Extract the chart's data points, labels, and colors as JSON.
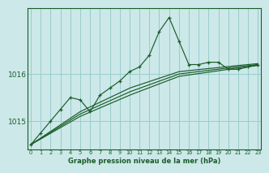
{
  "title": "Graphe pression niveau de la mer (hPa)",
  "bg_color": "#cce8e8",
  "grid_color": "#99cccc",
  "line_color": "#1a5c2a",
  "yticks": [
    1015,
    1016
  ],
  "ylim": [
    1014.4,
    1017.4
  ],
  "xlim": [
    -0.3,
    23.3
  ],
  "xticks": [
    0,
    1,
    2,
    3,
    4,
    5,
    6,
    7,
    8,
    9,
    10,
    11,
    12,
    13,
    14,
    15,
    16,
    17,
    18,
    19,
    20,
    21,
    22,
    23
  ],
  "main_x": [
    0,
    1,
    2,
    3,
    4,
    5,
    6,
    7,
    8,
    9,
    10,
    11,
    12,
    13,
    14,
    15,
    16,
    17,
    18,
    19,
    20,
    21,
    22,
    23
  ],
  "main_y": [
    1014.5,
    1014.75,
    1015.0,
    1015.25,
    1015.5,
    1015.45,
    1015.2,
    1015.55,
    1015.7,
    1015.85,
    1016.05,
    1016.15,
    1016.4,
    1016.9,
    1017.2,
    1016.7,
    1016.2,
    1016.2,
    1016.25,
    1016.25,
    1016.1,
    1016.1,
    1016.15,
    1016.2
  ],
  "trend_lines": [
    {
      "x": [
        0,
        5,
        10,
        15,
        20,
        23
      ],
      "y": [
        1014.5,
        1015.1,
        1015.55,
        1015.95,
        1016.1,
        1016.18
      ]
    },
    {
      "x": [
        0,
        5,
        10,
        15,
        20,
        23
      ],
      "y": [
        1014.5,
        1015.15,
        1015.62,
        1016.0,
        1016.13,
        1016.2
      ]
    },
    {
      "x": [
        0,
        5,
        10,
        15,
        20,
        23
      ],
      "y": [
        1014.5,
        1015.2,
        1015.7,
        1016.05,
        1016.16,
        1016.22
      ]
    }
  ]
}
